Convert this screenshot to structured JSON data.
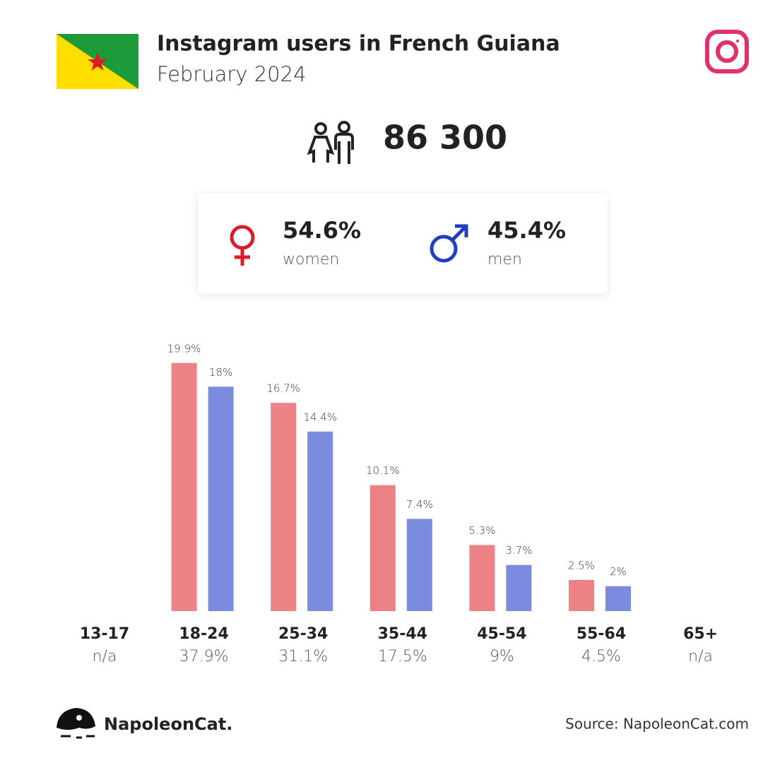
{
  "header": {
    "title": "Instagram users in French Guiana",
    "subtitle": "February 2024"
  },
  "total": "86 300",
  "chart_data": {
    "type": "bar",
    "categories": [
      "13-17",
      "18-24",
      "25-34",
      "35-44",
      "45-54",
      "55-64",
      "65+"
    ],
    "category_totals": [
      null,
      37.9,
      31.1,
      17.5,
      9,
      4.5,
      null
    ],
    "category_total_labels": [
      "n/a",
      "37.9%",
      "31.1%",
      "17.5%",
      "9%",
      "4.5%",
      "n/a"
    ],
    "series": [
      {
        "name": "women",
        "color": "#ec8286",
        "share": 54.6,
        "share_label": "54.6%",
        "values": [
          null,
          19.9,
          16.7,
          10.1,
          5.3,
          2.5,
          null
        ],
        "value_labels": [
          null,
          "19.9%",
          "16.7%",
          "10.1%",
          "5.3%",
          "2.5%",
          null
        ]
      },
      {
        "name": "men",
        "color": "#7b8cde",
        "share": 45.4,
        "share_label": "45.4%",
        "values": [
          null,
          18,
          14.4,
          7.4,
          3.7,
          2,
          null
        ],
        "value_labels": [
          null,
          "18%",
          "14.4%",
          "7.4%",
          "3.7%",
          "2%",
          null
        ]
      }
    ],
    "ylim": [
      0,
      20
    ]
  },
  "footer": {
    "brand": "NapoleonCat.",
    "source": "Source: NapoleonCat.com"
  }
}
